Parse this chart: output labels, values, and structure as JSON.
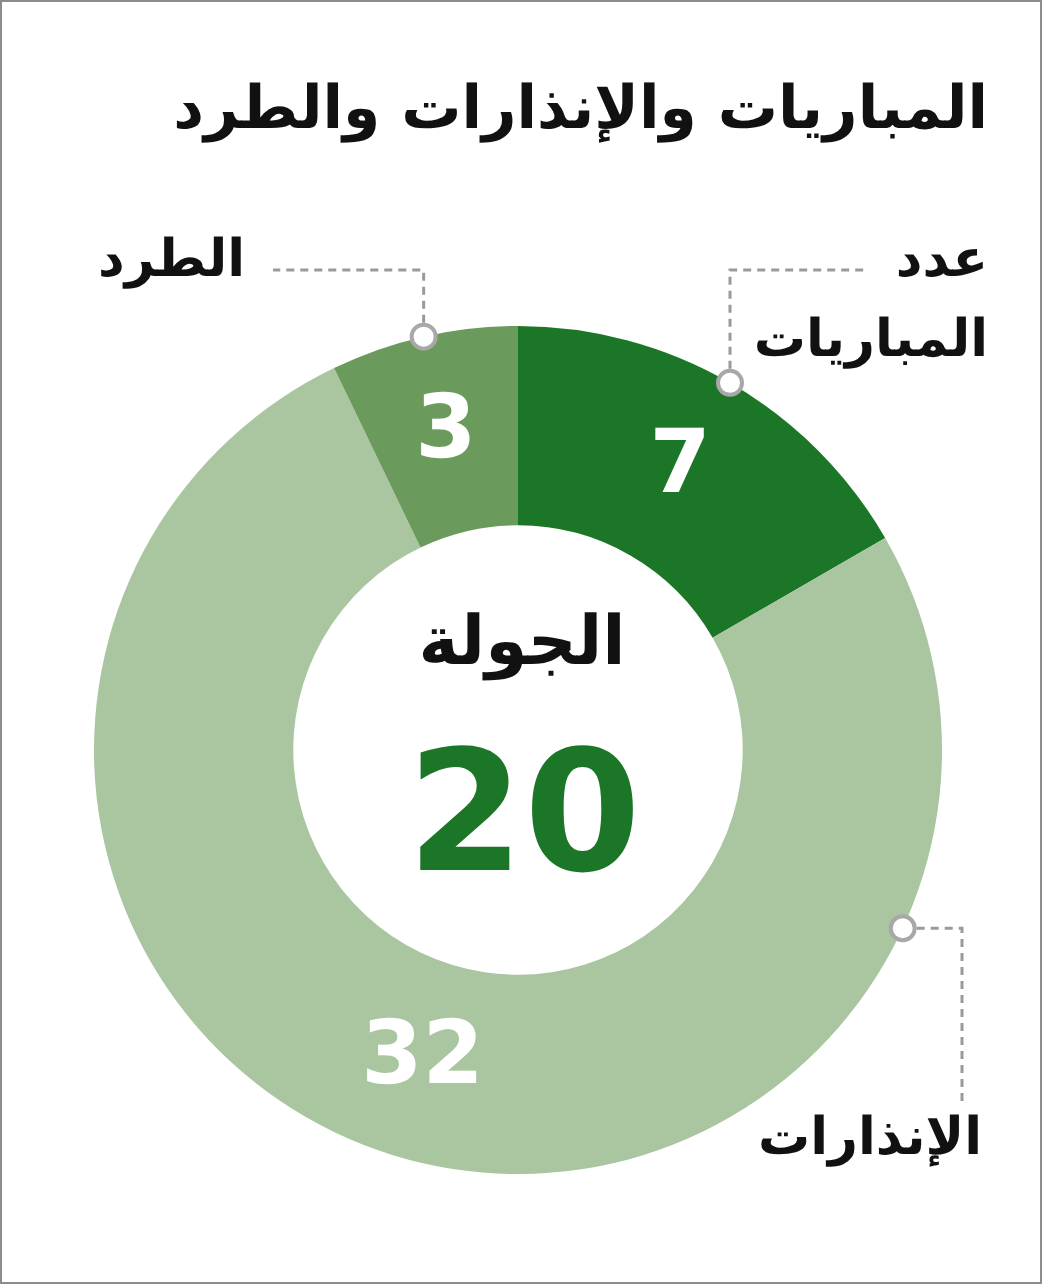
{
  "chart_data": {
    "type": "donut",
    "title": "المباريات والإنذارات والطرد",
    "categories": [
      "عدد المباريات",
      "الإنذارات",
      "الطرد"
    ],
    "values": [
      7,
      32,
      3
    ],
    "colors": [
      "#1b7727",
      "#a9c6a0",
      "#6b9b5c"
    ],
    "data_labels": true,
    "annotations": [
      "الجولة",
      "20"
    ],
    "legend": false
  }
}
